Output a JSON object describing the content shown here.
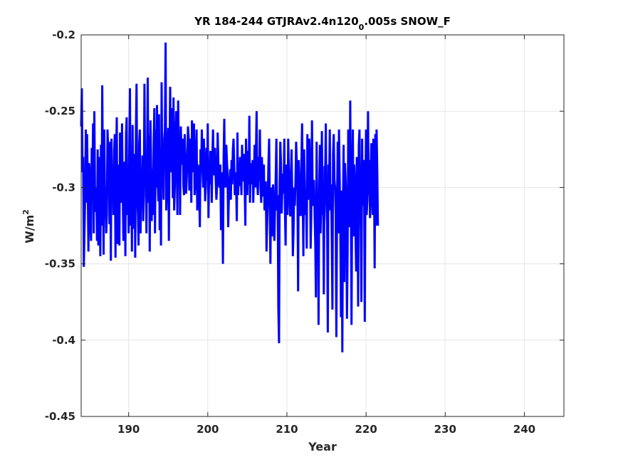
{
  "chart_data": {
    "type": "line",
    "title_main": "YR 184-244 GTJRAv2.4n120",
    "title_sub": "0",
    "title_tail": ".005s SNOW_F",
    "xlabel": "Year",
    "ylabel_base": "W/m",
    "ylabel_sup": "2",
    "xlim": [
      184,
      245
    ],
    "ylim": [
      -0.45,
      -0.2
    ],
    "xticks": [
      190,
      200,
      210,
      220,
      230,
      240
    ],
    "xtick_labels": [
      "190",
      "200",
      "210",
      "220",
      "230",
      "240"
    ],
    "yticks": [
      -0.45,
      -0.4,
      -0.35,
      -0.3,
      -0.25,
      -0.2
    ],
    "ytick_labels": [
      "-0.45",
      "-0.4",
      "-0.35",
      "-0.3",
      "-0.25",
      "-0.2"
    ],
    "grid": true,
    "series": [
      {
        "color": "#0000ff",
        "x_start": 184,
        "x_step": 0.08333,
        "y": [
          -0.26,
          -0.235,
          -0.29,
          -0.28,
          -0.352,
          -0.33,
          -0.305,
          -0.262,
          -0.31,
          -0.265,
          -0.3,
          -0.342,
          -0.284,
          -0.29,
          -0.325,
          -0.335,
          -0.274,
          -0.305,
          -0.258,
          -0.33,
          -0.25,
          -0.308,
          -0.316,
          -0.3,
          -0.335,
          -0.275,
          -0.338,
          -0.28,
          -0.302,
          -0.345,
          -0.272,
          -0.325,
          -0.233,
          -0.298,
          -0.344,
          -0.262,
          -0.3,
          -0.305,
          -0.33,
          -0.318,
          -0.262,
          -0.275,
          -0.285,
          -0.324,
          -0.27,
          -0.348,
          -0.268,
          -0.305,
          -0.291,
          -0.318,
          -0.276,
          -0.265,
          -0.346,
          -0.28,
          -0.254,
          -0.337,
          -0.305,
          -0.285,
          -0.338,
          -0.264,
          -0.3,
          -0.31,
          -0.258,
          -0.302,
          -0.335,
          -0.298,
          -0.283,
          -0.345,
          -0.265,
          -0.254,
          -0.318,
          -0.3,
          -0.33,
          -0.274,
          -0.235,
          -0.325,
          -0.287,
          -0.342,
          -0.259,
          -0.305,
          -0.327,
          -0.278,
          -0.346,
          -0.263,
          -0.232,
          -0.305,
          -0.318,
          -0.338,
          -0.271,
          -0.262,
          -0.33,
          -0.295,
          -0.309,
          -0.279,
          -0.322,
          -0.305,
          -0.232,
          -0.292,
          -0.285,
          -0.33,
          -0.279,
          -0.228,
          -0.31,
          -0.266,
          -0.342,
          -0.256,
          -0.283,
          -0.322,
          -0.288,
          -0.318,
          -0.268,
          -0.248,
          -0.33,
          -0.262,
          -0.3,
          -0.246,
          -0.296,
          -0.309,
          -0.252,
          -0.328,
          -0.274,
          -0.338,
          -0.231,
          -0.29,
          -0.283,
          -0.308,
          -0.268,
          -0.262,
          -0.205,
          -0.315,
          -0.3,
          -0.285,
          -0.261,
          -0.335,
          -0.275,
          -0.234,
          -0.29,
          -0.248,
          -0.268,
          -0.307,
          -0.241,
          -0.315,
          -0.3,
          -0.268,
          -0.25,
          -0.285,
          -0.318,
          -0.243,
          -0.278,
          -0.268,
          -0.318,
          -0.26,
          -0.275,
          -0.285,
          -0.268,
          -0.299,
          -0.305,
          -0.265,
          -0.28,
          -0.304,
          -0.295,
          -0.282,
          -0.26,
          -0.268,
          -0.302,
          -0.283,
          -0.268,
          -0.31,
          -0.256,
          -0.278,
          -0.29,
          -0.258,
          -0.305,
          -0.297,
          -0.278,
          -0.262,
          -0.315,
          -0.285,
          -0.288,
          -0.306,
          -0.326,
          -0.275,
          -0.288,
          -0.262,
          -0.29,
          -0.3,
          -0.268,
          -0.285,
          -0.309,
          -0.3,
          -0.274,
          -0.295,
          -0.258,
          -0.32,
          -0.292,
          -0.298,
          -0.276,
          -0.285,
          -0.31,
          -0.28,
          -0.262,
          -0.292,
          -0.29,
          -0.274,
          -0.294,
          -0.308,
          -0.3,
          -0.264,
          -0.282,
          -0.298,
          -0.3,
          -0.285,
          -0.328,
          -0.29,
          -0.305,
          -0.35,
          -0.28,
          -0.255,
          -0.294,
          -0.3,
          -0.272,
          -0.282,
          -0.291,
          -0.326,
          -0.305,
          -0.297,
          -0.288,
          -0.308,
          -0.282,
          -0.298,
          -0.276,
          -0.268,
          -0.285,
          -0.305,
          -0.29,
          -0.3,
          -0.322,
          -0.264,
          -0.305,
          -0.29,
          -0.299,
          -0.28,
          -0.288,
          -0.305,
          -0.272,
          -0.296,
          -0.286,
          -0.278,
          -0.3,
          -0.325,
          -0.268,
          -0.288,
          -0.305,
          -0.276,
          -0.298,
          -0.253,
          -0.31,
          -0.284,
          -0.29,
          -0.298,
          -0.282,
          -0.31,
          -0.292,
          -0.272,
          -0.3,
          -0.281,
          -0.25,
          -0.297,
          -0.305,
          -0.28,
          -0.296,
          -0.262,
          -0.3,
          -0.31,
          -0.28,
          -0.294,
          -0.306,
          -0.285,
          -0.315,
          -0.301,
          -0.296,
          -0.342,
          -0.324,
          -0.308,
          -0.285,
          -0.268,
          -0.31,
          -0.35,
          -0.3,
          -0.332,
          -0.312,
          -0.298,
          -0.328,
          -0.335,
          -0.312,
          -0.294,
          -0.268,
          -0.315,
          -0.305,
          -0.378,
          -0.402,
          -0.298,
          -0.27,
          -0.283,
          -0.317,
          -0.302,
          -0.291,
          -0.304,
          -0.268,
          -0.314,
          -0.338,
          -0.285,
          -0.296,
          -0.318,
          -0.268,
          -0.292,
          -0.305,
          -0.319,
          -0.295,
          -0.275,
          -0.305,
          -0.345,
          -0.33,
          -0.3,
          -0.312,
          -0.296,
          -0.27,
          -0.285,
          -0.302,
          -0.368,
          -0.282,
          -0.3,
          -0.318,
          -0.318,
          -0.285,
          -0.258,
          -0.306,
          -0.345,
          -0.275,
          -0.296,
          -0.318,
          -0.305,
          -0.34,
          -0.265,
          -0.295,
          -0.308,
          -0.268,
          -0.285,
          -0.34,
          -0.318,
          -0.256,
          -0.305,
          -0.312,
          -0.295,
          -0.318,
          -0.336,
          -0.372,
          -0.27,
          -0.32,
          -0.305,
          -0.39,
          -0.298,
          -0.272,
          -0.33,
          -0.31,
          -0.263,
          -0.318,
          -0.305,
          -0.37,
          -0.286,
          -0.292,
          -0.258,
          -0.31,
          -0.325,
          -0.395,
          -0.285,
          -0.3,
          -0.262,
          -0.315,
          -0.298,
          -0.335,
          -0.38,
          -0.278,
          -0.265,
          -0.295,
          -0.3,
          -0.318,
          -0.398,
          -0.312,
          -0.27,
          -0.33,
          -0.262,
          -0.295,
          -0.33,
          -0.385,
          -0.302,
          -0.408,
          -0.312,
          -0.272,
          -0.362,
          -0.284,
          -0.295,
          -0.312,
          -0.386,
          -0.345,
          -0.262,
          -0.3,
          -0.326,
          -0.243,
          -0.312,
          -0.39,
          -0.295,
          -0.262,
          -0.332,
          -0.285,
          -0.298,
          -0.33,
          -0.355,
          -0.28,
          -0.296,
          -0.378,
          -0.272,
          -0.262,
          -0.305,
          -0.328,
          -0.375,
          -0.268,
          -0.312,
          -0.295,
          -0.282,
          -0.388,
          -0.3,
          -0.262,
          -0.318,
          -0.308,
          -0.25,
          -0.305,
          -0.282,
          -0.32,
          -0.293,
          -0.271,
          -0.305,
          -0.318,
          -0.268,
          -0.285,
          -0.353,
          -0.265,
          -0.325,
          -0.262,
          -0.29,
          -0.325
        ]
      }
    ]
  }
}
